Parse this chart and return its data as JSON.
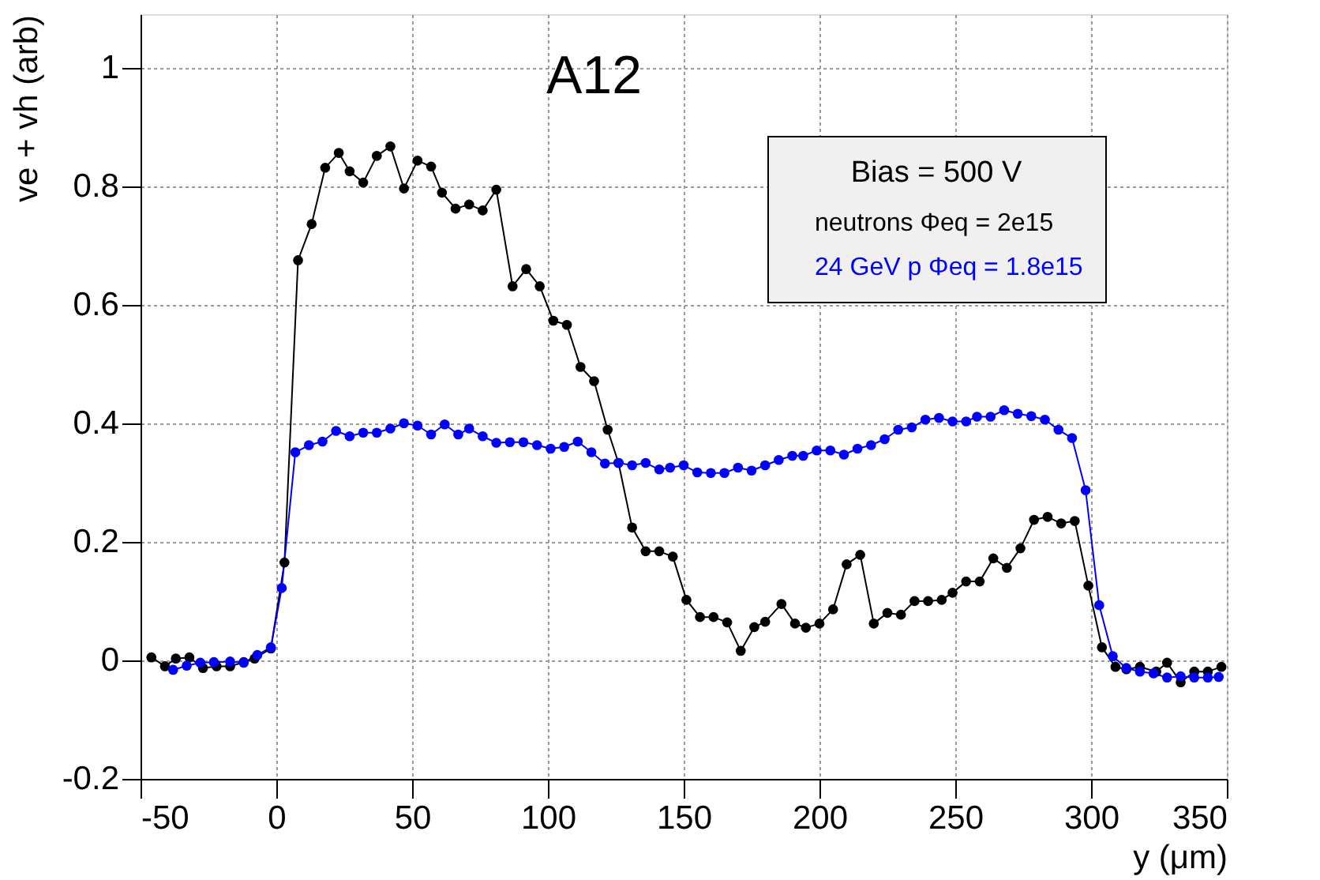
{
  "chart_data": {
    "type": "line",
    "xlabel": "y (μm)",
    "ylabel": "ve + vh (arb)",
    "legend_title": "Bias = 500 V",
    "annotations": [
      "A12"
    ],
    "xlim": [
      -50,
      350
    ],
    "ylim": [
      -0.2,
      1.09
    ],
    "xticks": [
      -50,
      0,
      50,
      100,
      150,
      200,
      250,
      300,
      350
    ],
    "yticks": [
      -0.2,
      0,
      0.2,
      0.4,
      0.6,
      0.8,
      1
    ],
    "grid": true,
    "legend": "top right",
    "marker": "circle",
    "line_style": "solid",
    "series": [
      {
        "name": "neutrons Φeq = 2e15",
        "color": "#000000",
        "x": [
          -46,
          -41,
          -37,
          -32,
          -27,
          -22,
          -17,
          -12,
          -8,
          -2,
          3,
          8,
          13,
          18,
          23,
          27,
          32,
          37,
          42,
          47,
          52,
          57,
          61,
          66,
          71,
          76,
          81,
          87,
          92,
          97,
          102,
          107,
          112,
          117,
          122,
          126,
          131,
          136,
          141,
          146,
          151,
          156,
          161,
          166,
          171,
          176,
          180,
          186,
          191,
          195,
          200,
          205,
          210,
          215,
          220,
          225,
          230,
          235,
          240,
          245,
          249,
          254,
          259,
          264,
          269,
          274,
          279,
          284,
          289,
          294,
          299,
          304,
          309,
          313,
          318,
          324,
          328,
          333,
          338,
          343,
          348
        ],
        "values": [
          0.005,
          -0.01,
          0.003,
          0.005,
          -0.013,
          -0.01,
          -0.01,
          -0.003,
          0.003,
          0.02,
          0.165,
          0.675,
          0.736,
          0.831,
          0.856,
          0.825,
          0.806,
          0.851,
          0.867,
          0.796,
          0.843,
          0.833,
          0.789,
          0.762,
          0.769,
          0.759,
          0.794,
          0.631,
          0.66,
          0.631,
          0.573,
          0.566,
          0.495,
          0.471,
          0.389,
          0.333,
          0.224,
          0.184,
          0.184,
          0.175,
          0.102,
          0.073,
          0.073,
          0.064,
          0.016,
          0.056,
          0.065,
          0.095,
          0.062,
          0.055,
          0.062,
          0.086,
          0.162,
          0.178,
          0.062,
          0.08,
          0.077,
          0.1,
          0.1,
          0.102,
          0.114,
          0.133,
          0.133,
          0.172,
          0.156,
          0.189,
          0.237,
          0.242,
          0.231,
          0.235,
          0.126,
          0.022,
          -0.011,
          -0.015,
          -0.011,
          -0.019,
          -0.004,
          -0.037,
          -0.019,
          -0.019,
          -0.011
        ]
      },
      {
        "name": "24 GeV p Φeq = 1.8e15",
        "color": "#0000ff",
        "x": [
          -38,
          -33,
          -28,
          -23,
          -17,
          -12,
          -7,
          -2,
          2,
          7,
          12,
          17,
          22,
          27,
          32,
          37,
          42,
          47,
          52,
          57,
          62,
          67,
          71,
          76,
          81,
          86,
          91,
          96,
          101,
          106,
          111,
          116,
          121,
          126,
          131,
          136,
          141,
          145,
          150,
          155,
          160,
          165,
          170,
          175,
          180,
          185,
          190,
          194,
          199,
          204,
          209,
          214,
          219,
          224,
          229,
          234,
          239,
          244,
          249,
          254,
          258,
          263,
          268,
          273,
          278,
          283,
          288,
          293,
          298,
          303,
          308,
          313,
          318,
          323,
          328,
          333,
          338,
          343,
          347
        ],
        "values": [
          -0.016,
          -0.009,
          -0.004,
          -0.003,
          -0.002,
          -0.004,
          0.009,
          0.022,
          0.122,
          0.351,
          0.363,
          0.369,
          0.387,
          0.378,
          0.384,
          0.384,
          0.391,
          0.4,
          0.396,
          0.381,
          0.398,
          0.381,
          0.391,
          0.378,
          0.367,
          0.368,
          0.368,
          0.363,
          0.357,
          0.36,
          0.369,
          0.351,
          0.332,
          0.333,
          0.329,
          0.333,
          0.322,
          0.325,
          0.329,
          0.317,
          0.316,
          0.316,
          0.325,
          0.32,
          0.329,
          0.338,
          0.345,
          0.345,
          0.354,
          0.354,
          0.347,
          0.357,
          0.363,
          0.373,
          0.389,
          0.393,
          0.406,
          0.409,
          0.403,
          0.403,
          0.411,
          0.411,
          0.422,
          0.416,
          0.412,
          0.406,
          0.389,
          0.375,
          0.287,
          0.093,
          0.007,
          -0.013,
          -0.019,
          -0.022,
          -0.029,
          -0.027,
          -0.029,
          -0.029,
          -0.028
        ]
      }
    ]
  }
}
